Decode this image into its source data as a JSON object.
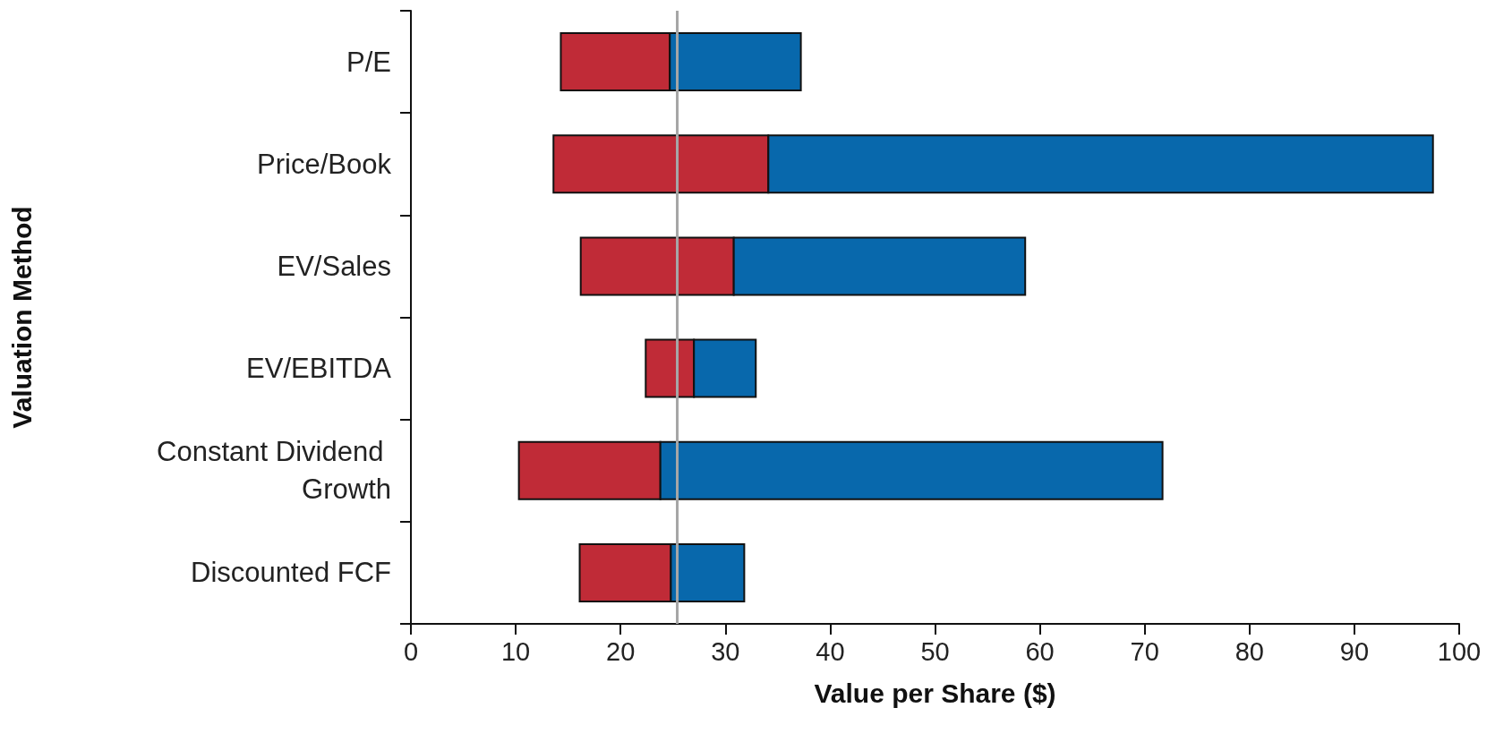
{
  "chart_data": {
    "type": "bar",
    "orientation": "horizontal",
    "xlabel": "Value per Share ($)",
    "ylabel": "Valuation Method",
    "categories": [
      "P/E",
      "Price/Book",
      "EV/Sales",
      "EV/EBITDA",
      "Constant Dividend Growth",
      "Discounted FCF"
    ],
    "series": [
      {
        "color": "#c02b37",
        "base": [
          14.3,
          13.6,
          16.2,
          22.4,
          10.3,
          16.1
        ],
        "values": [
          10.4,
          20.5,
          14.6,
          4.6,
          13.5,
          8.7
        ]
      },
      {
        "color": "#0868ac",
        "base": [
          24.7,
          34.1,
          30.8,
          27.0,
          23.8,
          24.8
        ],
        "values": [
          12.5,
          63.4,
          27.8,
          5.9,
          47.9,
          7.0
        ]
      }
    ],
    "xlim": [
      0,
      100
    ],
    "xticks": [
      0,
      10,
      20,
      30,
      40,
      50,
      60,
      70,
      80,
      90,
      100
    ],
    "ref_lines": [
      {
        "axis": "x",
        "value": 25.4,
        "color": "#a6a6a6"
      }
    ]
  }
}
